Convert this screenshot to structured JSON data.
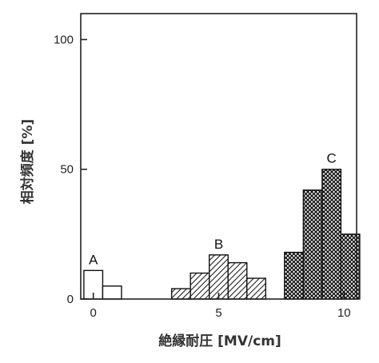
{
  "chart_data": {
    "type": "bar",
    "xlabel": "絶縁耐圧 [MV/cm]",
    "ylabel": "相対頻度 [%]",
    "xlim": [
      -0.5,
      10.5
    ],
    "ylim": [
      0,
      110
    ],
    "xticks": [
      "0",
      "5",
      "10"
    ],
    "yticks": [
      "0",
      "50",
      "100"
    ],
    "bin_width": 0.75,
    "series": [
      {
        "name": "A",
        "pattern": "none",
        "bins": [
          {
            "x": 0.0,
            "value": 11
          },
          {
            "x": 0.75,
            "value": 5
          }
        ]
      },
      {
        "name": "B",
        "pattern": "diagonal-hatch",
        "bins": [
          {
            "x": 3.5,
            "value": 4
          },
          {
            "x": 4.25,
            "value": 10
          },
          {
            "x": 5.0,
            "value": 17
          },
          {
            "x": 5.75,
            "value": 14
          },
          {
            "x": 6.5,
            "value": 8
          }
        ]
      },
      {
        "name": "C",
        "pattern": "cross-hatch",
        "bins": [
          {
            "x": 8.0,
            "value": 18
          },
          {
            "x": 8.75,
            "value": 42
          },
          {
            "x": 9.5,
            "value": 50
          },
          {
            "x": 10.25,
            "value": 25
          }
        ]
      }
    ],
    "grid": false,
    "legend": "none"
  }
}
